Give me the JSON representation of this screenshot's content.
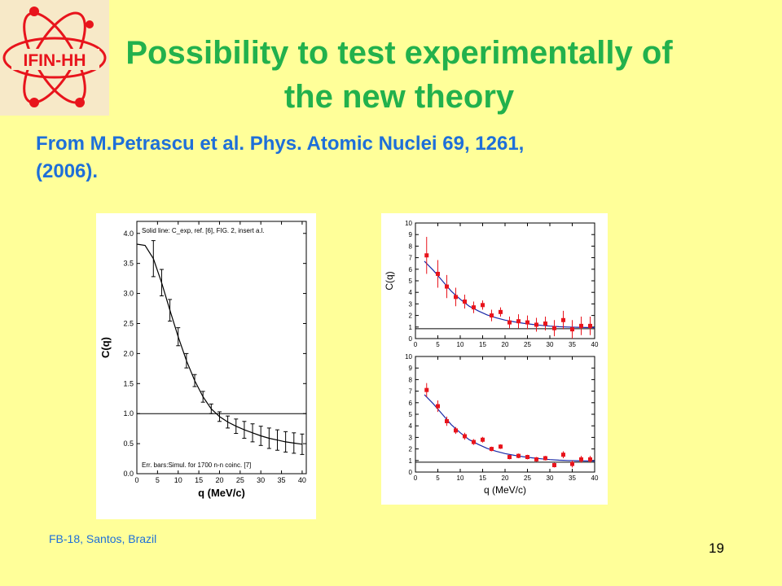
{
  "slide": {
    "title_line1": "Possibility to test experimentally of",
    "title_line2": "the new theory",
    "subtitle_line1": "From M.Petrascu et al. Phys. Atomic Nuclei 69, 1261,",
    "subtitle_line2": "(2006).",
    "footer": "FB-18, Santos, Brazil",
    "page_number": "19",
    "logo_text": "IFIN-HH"
  },
  "colors": {
    "title": "#22b14c",
    "subtitle": "#1e6fd9",
    "background": "#FFFF99",
    "logo_red": "#e8141c",
    "points": "#e8141c",
    "curve": "#1a2aa8"
  },
  "chart_data": [
    {
      "type": "line",
      "xlabel": "q (MeV/c)",
      "ylabel": "C(q)",
      "xlim": [
        0,
        41
      ],
      "ylim": [
        0.0,
        4.2
      ],
      "xticks": [
        "0",
        "5",
        "10",
        "15",
        "20",
        "25",
        "30",
        "35",
        "40"
      ],
      "yticks": [
        "0.0",
        "0.5",
        "1.0",
        "1.5",
        "2.0",
        "2.5",
        "3.0",
        "3.5",
        "4.0"
      ],
      "annotation_top": "Solid line: C_exp, ref. [6], FIG. 2, insert a.l.",
      "annotation_bottom": "Err. bars:Simul. for 1700 n-n coinc. [7]",
      "reference_line": 1.0,
      "curve": {
        "x": [
          0,
          2,
          4,
          6,
          8,
          10,
          12,
          14,
          16,
          18,
          20,
          22,
          24,
          26,
          28,
          30,
          32,
          34,
          36,
          38,
          40
        ],
        "y": [
          3.82,
          3.8,
          3.58,
          3.18,
          2.72,
          2.28,
          1.88,
          1.55,
          1.28,
          1.08,
          0.95,
          0.86,
          0.79,
          0.73,
          0.68,
          0.63,
          0.59,
          0.56,
          0.53,
          0.51,
          0.49
        ]
      },
      "errorbars": {
        "x": [
          4,
          6,
          8,
          10,
          12,
          14,
          16,
          18,
          20,
          22,
          24,
          26,
          28,
          30,
          32,
          34,
          36,
          38,
          40
        ],
        "y": [
          3.58,
          3.18,
          2.72,
          2.28,
          1.88,
          1.55,
          1.28,
          1.08,
          0.95,
          0.86,
          0.79,
          0.73,
          0.68,
          0.63,
          0.59,
          0.56,
          0.53,
          0.51,
          0.49
        ],
        "err": [
          0.3,
          0.22,
          0.18,
          0.15,
          0.12,
          0.1,
          0.09,
          0.08,
          0.08,
          0.1,
          0.12,
          0.14,
          0.15,
          0.16,
          0.17,
          0.17,
          0.17,
          0.17,
          0.17
        ]
      }
    },
    {
      "type": "scatter",
      "xlabel": "",
      "ylabel": "C(q)",
      "xlim": [
        0,
        40
      ],
      "ylim": [
        0,
        10
      ],
      "xticks": [
        "0",
        "5",
        "10",
        "15",
        "20",
        "25",
        "30",
        "35",
        "40"
      ],
      "yticks": [
        "0",
        "1",
        "2",
        "3",
        "4",
        "5",
        "6",
        "7",
        "8",
        "9",
        "10"
      ],
      "reference_line": 0.85,
      "points": {
        "x": [
          2.5,
          5,
          7,
          9,
          11,
          13,
          15,
          17,
          19,
          21,
          23,
          25,
          27,
          29,
          31,
          33,
          35,
          37,
          39
        ],
        "y": [
          7.2,
          5.6,
          4.5,
          3.6,
          3.2,
          2.7,
          2.9,
          2.0,
          2.3,
          1.4,
          1.5,
          1.4,
          1.2,
          1.3,
          0.9,
          1.6,
          0.8,
          1.1,
          1.1
        ],
        "err": [
          1.6,
          1.2,
          1.0,
          0.8,
          0.6,
          0.5,
          0.4,
          0.5,
          0.4,
          0.5,
          0.6,
          0.6,
          0.6,
          0.6,
          0.7,
          0.8,
          0.8,
          0.8,
          0.8
        ]
      },
      "curve": {
        "x": [
          2,
          4,
          6,
          8,
          10,
          12,
          14,
          16,
          18,
          20,
          22,
          24,
          26,
          28,
          30,
          32,
          34,
          36,
          38,
          40
        ],
        "y": [
          6.7,
          5.9,
          5.0,
          4.1,
          3.4,
          2.8,
          2.4,
          2.05,
          1.8,
          1.6,
          1.45,
          1.33,
          1.23,
          1.15,
          1.08,
          1.03,
          1.0,
          0.98,
          0.96,
          0.95
        ]
      }
    },
    {
      "type": "scatter",
      "xlabel": "q (MeV/c)",
      "ylabel": "",
      "xlim": [
        0,
        40
      ],
      "ylim": [
        0,
        10
      ],
      "xticks": [
        "0",
        "5",
        "10",
        "15",
        "20",
        "25",
        "30",
        "35",
        "40"
      ],
      "yticks": [
        "0",
        "1",
        "2",
        "3",
        "4",
        "5",
        "6",
        "7",
        "8",
        "9",
        "10"
      ],
      "reference_line": 0.85,
      "points": {
        "x": [
          2.5,
          5,
          7,
          9,
          11,
          13,
          15,
          17,
          19,
          21,
          23,
          25,
          27,
          29,
          31,
          33,
          35,
          37,
          39
        ],
        "y": [
          7.1,
          5.7,
          4.4,
          3.6,
          3.1,
          2.6,
          2.8,
          2.0,
          2.2,
          1.3,
          1.4,
          1.3,
          1.1,
          1.2,
          0.6,
          1.5,
          0.7,
          1.1,
          1.1
        ],
        "err": [
          0.6,
          0.5,
          0.4,
          0.3,
          0.3,
          0.25,
          0.25,
          0.2,
          0.2,
          0.2,
          0.2,
          0.2,
          0.2,
          0.2,
          0.2,
          0.3,
          0.3,
          0.3,
          0.3
        ]
      },
      "curve": {
        "x": [
          2,
          4,
          6,
          8,
          10,
          12,
          14,
          16,
          18,
          20,
          22,
          24,
          26,
          28,
          30,
          32,
          34,
          36,
          38,
          40
        ],
        "y": [
          6.7,
          5.9,
          5.0,
          4.1,
          3.4,
          2.8,
          2.4,
          2.05,
          1.8,
          1.6,
          1.45,
          1.33,
          1.23,
          1.15,
          1.08,
          1.03,
          1.0,
          0.98,
          0.96,
          0.95
        ]
      }
    }
  ]
}
